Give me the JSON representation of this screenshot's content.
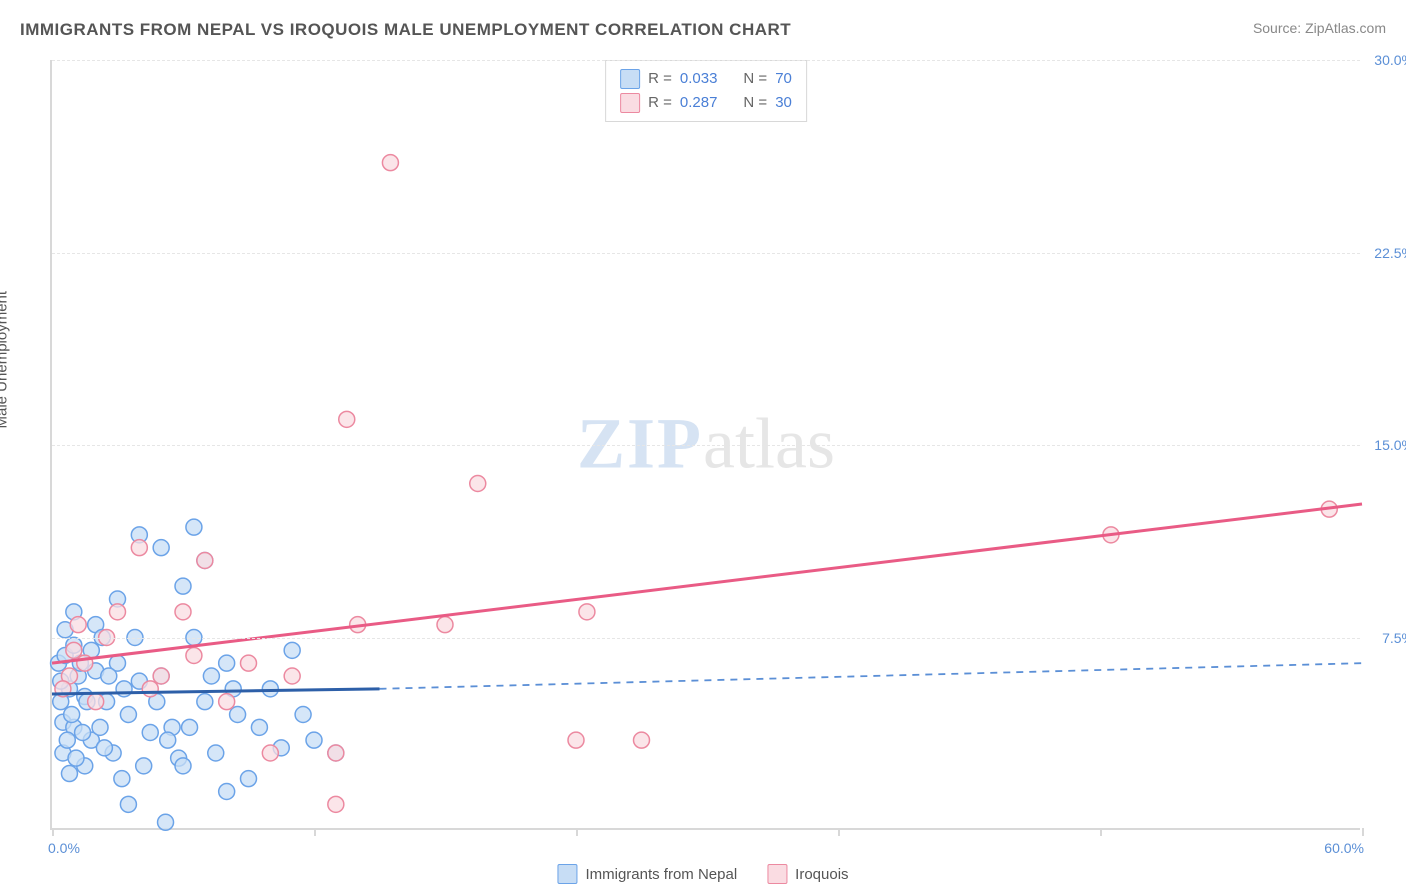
{
  "title": "IMMIGRANTS FROM NEPAL VS IROQUOIS MALE UNEMPLOYMENT CORRELATION CHART",
  "source": "Source: ZipAtlas.com",
  "y_axis_label": "Male Unemployment",
  "watermark": {
    "zip": "ZIP",
    "atlas": "atlas"
  },
  "chart": {
    "type": "scatter",
    "xlim": [
      0,
      60
    ],
    "ylim": [
      0,
      30
    ],
    "x_ticks": [
      0,
      12,
      24,
      36,
      48,
      60
    ],
    "y_ticks": [
      7.5,
      15.0,
      22.5,
      30.0
    ],
    "y_tick_labels": [
      "7.5%",
      "15.0%",
      "22.5%",
      "30.0%"
    ],
    "x_start_label": "0.0%",
    "x_end_label": "60.0%",
    "grid_color": "#e6e6e6",
    "axis_color": "#d8d8d8",
    "background_color": "#ffffff",
    "tick_label_color": "#5b8fd6",
    "series": [
      {
        "name": "Immigrants from Nepal",
        "marker_fill": "#c7ddf5",
        "marker_stroke": "#6ba3e8",
        "marker_radius": 8,
        "line_color": "#2d5fa8",
        "line_dash_color": "#5b8fd6",
        "points": [
          [
            0.3,
            6.5
          ],
          [
            0.4,
            5.0
          ],
          [
            0.6,
            6.8
          ],
          [
            0.5,
            4.2
          ],
          [
            0.8,
            5.5
          ],
          [
            1.0,
            7.2
          ],
          [
            0.5,
            3.0
          ],
          [
            0.8,
            2.2
          ],
          [
            1.2,
            6.0
          ],
          [
            1.5,
            5.2
          ],
          [
            1.0,
            4.0
          ],
          [
            1.8,
            3.5
          ],
          [
            2.0,
            6.2
          ],
          [
            1.5,
            2.5
          ],
          [
            2.5,
            5.0
          ],
          [
            2.2,
            4.0
          ],
          [
            3.0,
            6.5
          ],
          [
            2.8,
            3.0
          ],
          [
            3.5,
            4.5
          ],
          [
            3.2,
            2.0
          ],
          [
            4.0,
            5.8
          ],
          [
            3.8,
            7.5
          ],
          [
            4.5,
            3.8
          ],
          [
            4.2,
            2.5
          ],
          [
            5.0,
            6.0
          ],
          [
            5.5,
            4.0
          ],
          [
            4.0,
            11.5
          ],
          [
            5.0,
            11.0
          ],
          [
            5.8,
            2.8
          ],
          [
            6.5,
            7.5
          ],
          [
            6.0,
            9.5
          ],
          [
            6.5,
            11.8
          ],
          [
            7.0,
            5.0
          ],
          [
            8.0,
            6.5
          ],
          [
            7.5,
            3.0
          ],
          [
            8.5,
            4.5
          ],
          [
            6.0,
            2.5
          ],
          [
            10.0,
            5.5
          ],
          [
            10.5,
            3.2
          ],
          [
            11.0,
            7.0
          ],
          [
            9.0,
            2.0
          ],
          [
            12.0,
            3.5
          ],
          [
            7.0,
            10.5
          ],
          [
            8.0,
            1.5
          ],
          [
            2.0,
            8.0
          ],
          [
            3.0,
            9.0
          ],
          [
            1.0,
            8.5
          ],
          [
            1.8,
            7.0
          ],
          [
            0.6,
            7.8
          ],
          [
            1.3,
            6.5
          ],
          [
            2.3,
            7.5
          ],
          [
            0.4,
            5.8
          ],
          [
            1.6,
            5.0
          ],
          [
            2.6,
            6.0
          ],
          [
            0.9,
            4.5
          ],
          [
            1.4,
            3.8
          ],
          [
            3.3,
            5.5
          ],
          [
            4.8,
            5.0
          ],
          [
            5.3,
            3.5
          ],
          [
            6.3,
            4.0
          ],
          [
            7.3,
            6.0
          ],
          [
            8.3,
            5.5
          ],
          [
            9.5,
            4.0
          ],
          [
            11.5,
            4.5
          ],
          [
            5.2,
            0.3
          ],
          [
            3.5,
            1.0
          ],
          [
            13.0,
            3.0
          ],
          [
            2.4,
            3.2
          ],
          [
            1.1,
            2.8
          ],
          [
            0.7,
            3.5
          ]
        ],
        "trend": {
          "x1": 0,
          "y1": 5.3,
          "x2": 15,
          "y2": 5.5,
          "dash_x2": 60,
          "dash_y2": 6.5
        }
      },
      {
        "name": "Iroquois",
        "marker_fill": "#fadce2",
        "marker_stroke": "#ec89a0",
        "marker_radius": 8,
        "line_color": "#e95b85",
        "points": [
          [
            0.8,
            6.0
          ],
          [
            1.0,
            7.0
          ],
          [
            3.0,
            8.5
          ],
          [
            4.0,
            11.0
          ],
          [
            7.0,
            10.5
          ],
          [
            6.0,
            8.5
          ],
          [
            9.0,
            6.5
          ],
          [
            10.0,
            3.0
          ],
          [
            14.0,
            8.0
          ],
          [
            13.0,
            3.0
          ],
          [
            13.0,
            1.0
          ],
          [
            13.5,
            16.0
          ],
          [
            15.5,
            26.0
          ],
          [
            18.0,
            8.0
          ],
          [
            19.5,
            13.5
          ],
          [
            24.5,
            8.5
          ],
          [
            24.0,
            3.5
          ],
          [
            27.0,
            3.5
          ],
          [
            48.5,
            11.5
          ],
          [
            58.5,
            12.5
          ],
          [
            1.5,
            6.5
          ],
          [
            2.5,
            7.5
          ],
          [
            5.0,
            6.0
          ],
          [
            8.0,
            5.0
          ],
          [
            11.0,
            6.0
          ],
          [
            2.0,
            5.0
          ],
          [
            6.5,
            6.8
          ],
          [
            4.5,
            5.5
          ],
          [
            0.5,
            5.5
          ],
          [
            1.2,
            8.0
          ]
        ],
        "trend": {
          "x1": 0,
          "y1": 6.5,
          "x2": 60,
          "y2": 12.7
        }
      }
    ]
  },
  "legend_top": [
    {
      "swatch_fill": "#c7ddf5",
      "swatch_stroke": "#6ba3e8",
      "r_label": "R =",
      "r_val": "0.033",
      "n_label": "N =",
      "n_val": "70"
    },
    {
      "swatch_fill": "#fadce2",
      "swatch_stroke": "#ec89a0",
      "r_label": "R =",
      "r_val": "0.287",
      "n_label": "N =",
      "n_val": "30"
    }
  ],
  "legend_bottom": [
    {
      "swatch_fill": "#c7ddf5",
      "swatch_stroke": "#6ba3e8",
      "label": "Immigrants from Nepal"
    },
    {
      "swatch_fill": "#fadce2",
      "swatch_stroke": "#ec89a0",
      "label": "Iroquois"
    }
  ]
}
